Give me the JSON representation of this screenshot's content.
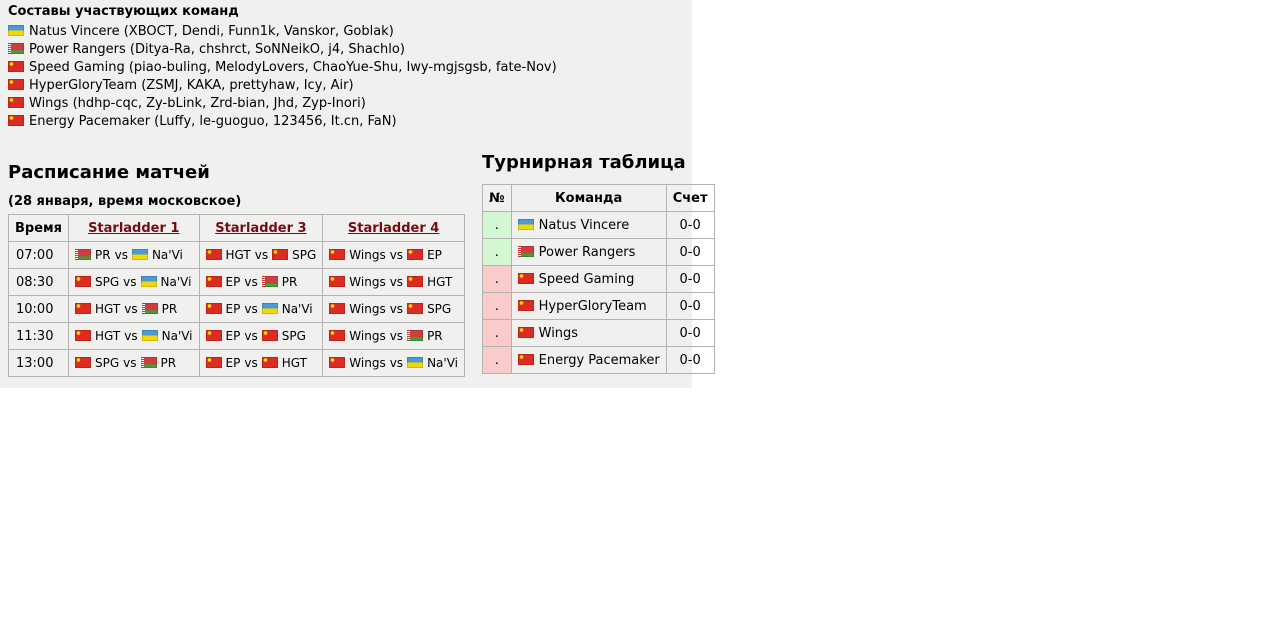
{
  "labels": {
    "vs": "vs"
  },
  "colors": {
    "page_bg": "#f0f0ee",
    "link": "#770b10",
    "zone_green": "#d2f7d2",
    "zone_red": "#fbcaca"
  },
  "roster": {
    "title": "Составы участвующих команд",
    "teams": [
      {
        "flag": "ua",
        "text": "Natus Vincere (XBOCT, Dendi, Funn1k, Vanskor, Goblak)"
      },
      {
        "flag": "by",
        "text": "Power Rangers (Ditya-Ra, chshrct, SoNNeikO, j4, Shachlo)"
      },
      {
        "flag": "cn",
        "text": "Speed Gaming (piao-buling, MelodyLovers, ChaoYue-Shu, Iwy-mgjsgsb, fate-Nov)"
      },
      {
        "flag": "cn",
        "text": "HyperGloryTeam (ZSMJ, KAKA, prettyhaw, Icy, Air)"
      },
      {
        "flag": "cn",
        "text": "Wings (hdhp-cqc, Zy-bLink, Zrd-bian, Jhd, Zyp-Inori)"
      },
      {
        "flag": "cn",
        "text": "Energy Pacemaker (Luffy, le-guoguo, 123456, It.cn, FaN)"
      }
    ]
  },
  "schedule": {
    "title": "Расписание матчей",
    "subtitle": "(28 января, время московское)",
    "columns": [
      "Время",
      "Starladder 1",
      "Starladder 3",
      "Starladder 4"
    ],
    "rows": [
      {
        "time": "07:00",
        "matches": [
          {
            "f1": "by",
            "t1": "PR",
            "f2": "ua",
            "t2": "Na'Vi"
          },
          {
            "f1": "cn",
            "t1": "HGT",
            "f2": "cn",
            "t2": "SPG"
          },
          {
            "f1": "cn",
            "t1": "Wings",
            "f2": "cn",
            "t2": "EP"
          }
        ]
      },
      {
        "time": "08:30",
        "matches": [
          {
            "f1": "cn",
            "t1": "SPG",
            "f2": "ua",
            "t2": "Na'Vi"
          },
          {
            "f1": "cn",
            "t1": "EP",
            "f2": "by",
            "t2": "PR"
          },
          {
            "f1": "cn",
            "t1": "Wings",
            "f2": "cn",
            "t2": "HGT"
          }
        ]
      },
      {
        "time": "10:00",
        "matches": [
          {
            "f1": "cn",
            "t1": "HGT",
            "f2": "by",
            "t2": "PR"
          },
          {
            "f1": "cn",
            "t1": "EP",
            "f2": "ua",
            "t2": "Na'Vi"
          },
          {
            "f1": "cn",
            "t1": "Wings",
            "f2": "cn",
            "t2": "SPG"
          }
        ]
      },
      {
        "time": "11:30",
        "matches": [
          {
            "f1": "cn",
            "t1": "HGT",
            "f2": "ua",
            "t2": "Na'Vi"
          },
          {
            "f1": "cn",
            "t1": "EP",
            "f2": "cn",
            "t2": "SPG"
          },
          {
            "f1": "cn",
            "t1": "Wings",
            "f2": "by",
            "t2": "PR"
          }
        ]
      },
      {
        "time": "13:00",
        "matches": [
          {
            "f1": "cn",
            "t1": "SPG",
            "f2": "by",
            "t2": "PR"
          },
          {
            "f1": "cn",
            "t1": "EP",
            "f2": "cn",
            "t2": "HGT"
          },
          {
            "f1": "cn",
            "t1": "Wings",
            "f2": "ua",
            "t2": "Na'Vi"
          }
        ]
      }
    ]
  },
  "standings": {
    "title": "Турнирная таблица",
    "columns": [
      "№",
      "Команда",
      "Счет"
    ],
    "rows": [
      {
        "pos": ".",
        "zone": "green",
        "flag": "ua",
        "team": "Natus Vincere",
        "score": "0-0"
      },
      {
        "pos": ".",
        "zone": "green",
        "flag": "by",
        "team": "Power Rangers",
        "score": "0-0"
      },
      {
        "pos": ".",
        "zone": "red",
        "flag": "cn",
        "team": "Speed Gaming",
        "score": "0-0"
      },
      {
        "pos": ".",
        "zone": "red",
        "flag": "cn",
        "team": "HyperGloryTeam",
        "score": "0-0"
      },
      {
        "pos": ".",
        "zone": "red",
        "flag": "cn",
        "team": "Wings",
        "score": "0-0"
      },
      {
        "pos": ".",
        "zone": "red",
        "flag": "cn",
        "team": "Energy Pacemaker",
        "score": "0-0"
      }
    ]
  }
}
